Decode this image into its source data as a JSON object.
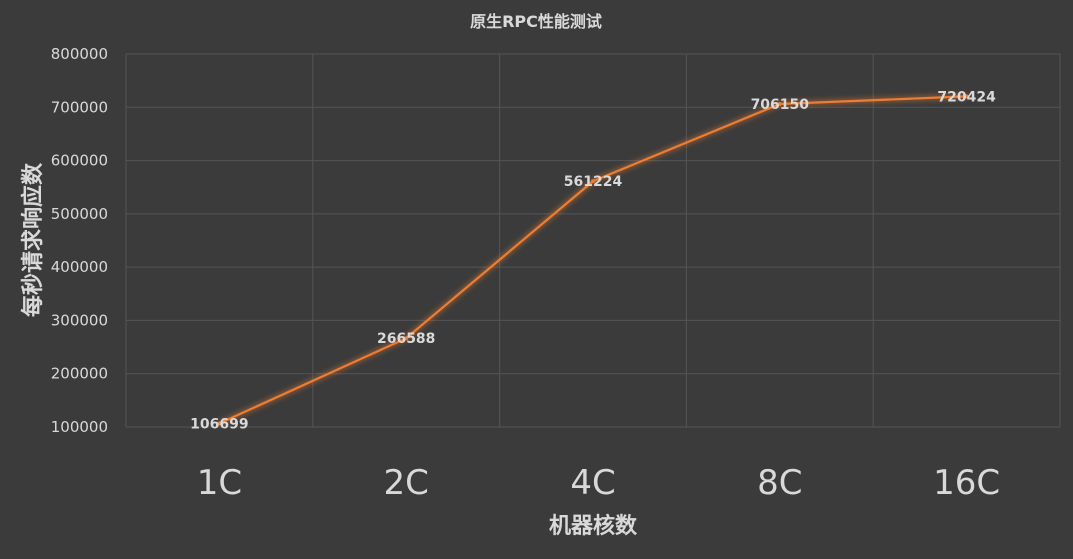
{
  "chart_data": {
    "type": "line",
    "title": "原生RPC性能测试",
    "xlabel": "机器核数",
    "ylabel": "每秒请求响应数",
    "categories": [
      "1C",
      "2C",
      "4C",
      "8C",
      "16C"
    ],
    "series": [
      {
        "values": [
          106699,
          266588,
          561224,
          706150,
          720424
        ]
      }
    ],
    "data_labels": [
      "106699",
      "266588",
      "561224",
      "706150",
      "720424"
    ],
    "ylim": [
      100000,
      800000
    ],
    "yticks": [
      "100000",
      "200000",
      "300000",
      "400000",
      "500000",
      "600000",
      "700000",
      "800000"
    ],
    "grid": true,
    "line_color": "#ed7d31",
    "background": "#3b3b3b"
  }
}
